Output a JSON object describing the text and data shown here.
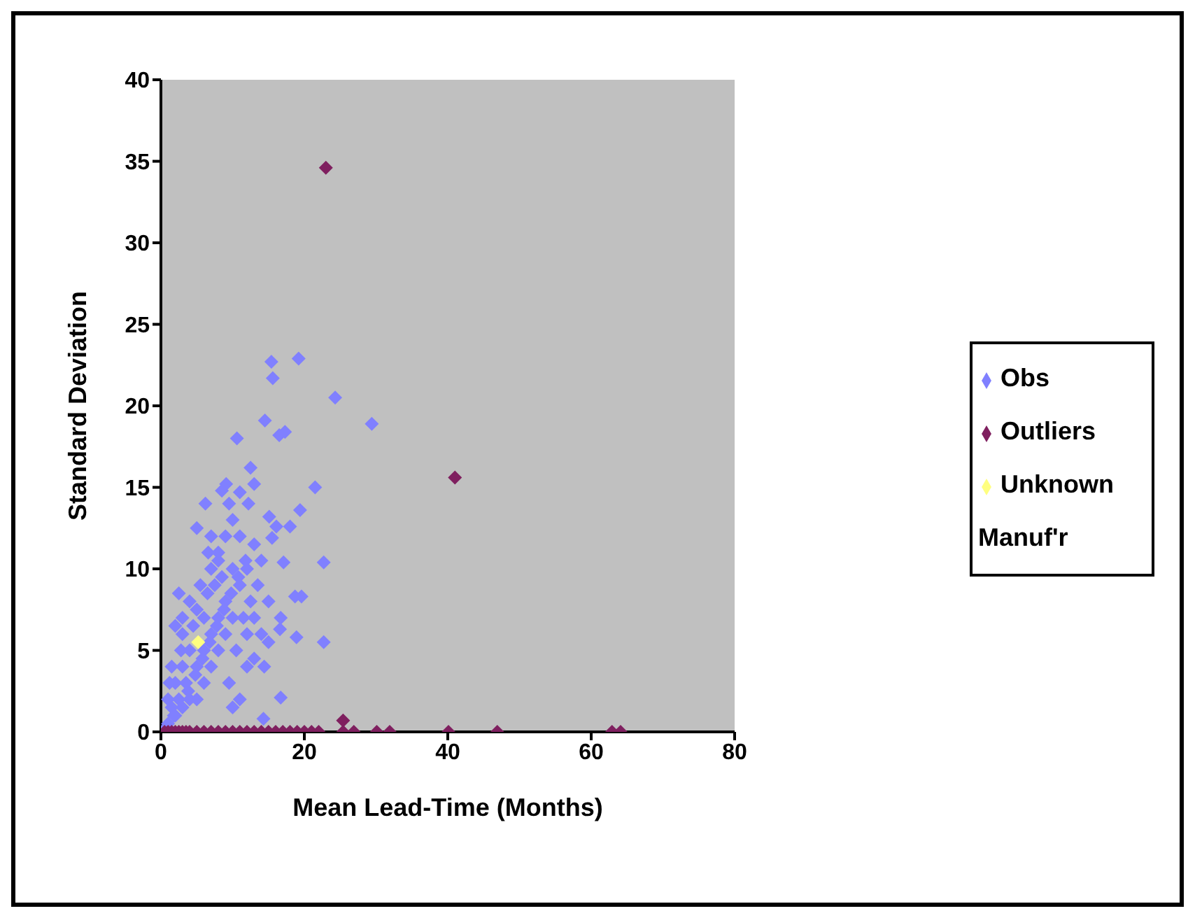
{
  "chart_data": {
    "type": "scatter",
    "xlabel": "Mean Lead-Time (Months)",
    "ylabel": "Standard Deviation",
    "xlim": [
      0,
      80
    ],
    "ylim": [
      0,
      40
    ],
    "xticks": [
      0,
      20,
      40,
      60,
      80
    ],
    "yticks": [
      0,
      5,
      10,
      15,
      20,
      25,
      30,
      35,
      40
    ],
    "grid": false,
    "legend": "right",
    "marker": "diamond",
    "series": [
      {
        "name": "Obs",
        "color": "#8080ff",
        "x": [
          15.4,
          19.2,
          15.6,
          24.3,
          29.4,
          14.5,
          16.5,
          17.3,
          10.6,
          21.5,
          12.5,
          22.7,
          22.7,
          16.7,
          14.4,
          14.3,
          19.4,
          18.0,
          19.6,
          18.7,
          18.9,
          16.6,
          16.7,
          17.1,
          15.1,
          15.5,
          16.1,
          9.1,
          8.5,
          6.2,
          5.0,
          6.6,
          8.0,
          12.2,
          13.0,
          11.0,
          1,
          1.5,
          2,
          2,
          2.5,
          3,
          3,
          3,
          3.5,
          4,
          4,
          4,
          4.5,
          5,
          5,
          5,
          5.5,
          6,
          6,
          6,
          6.5,
          7,
          7,
          7,
          7.5,
          8,
          8,
          8,
          8.5,
          9,
          9,
          9,
          9.5,
          10,
          10,
          10,
          10.5,
          11,
          11,
          11.5,
          12,
          12,
          12.5,
          13,
          13,
          13.5,
          14,
          14,
          15,
          15,
          2.5,
          2,
          1.5,
          1,
          1.2,
          3,
          2.8,
          7,
          9.5,
          10,
          11,
          12,
          13,
          0.8,
          1.8,
          3.8,
          4.8,
          5.8,
          6.8,
          7.8,
          8.8,
          9.8,
          10.8,
          11.8
        ],
        "values": [
          22.7,
          22.9,
          21.7,
          20.5,
          18.9,
          19.1,
          18.2,
          18.4,
          18.0,
          15.0,
          16.2,
          10.4,
          5.5,
          2.1,
          4.0,
          0.8,
          13.6,
          12.6,
          8.3,
          8.3,
          5.8,
          6.3,
          7.0,
          10.4,
          13.2,
          11.9,
          12.6,
          15.2,
          14.8,
          14.0,
          12.5,
          11.0,
          10.5,
          14.0,
          15.2,
          14.7,
          0.5,
          1.5,
          1,
          3,
          2,
          4,
          6,
          1.5,
          3,
          5,
          8,
          2,
          6.5,
          4,
          7.5,
          2,
          9,
          5,
          7,
          3,
          8.5,
          6,
          10,
          4,
          9,
          7,
          11,
          5,
          9.5,
          8,
          12,
          6,
          3,
          10,
          7,
          13,
          5,
          9,
          12,
          7,
          10,
          6,
          8,
          11.5,
          7,
          9,
          10.5,
          6,
          8,
          5.5,
          8.5,
          6.5,
          4,
          2,
          3,
          7,
          5,
          12,
          14,
          1.5,
          2,
          4,
          4.5,
          0.3,
          1,
          2.5,
          3.5,
          4.5,
          5.5,
          6.5,
          7.5,
          8.5,
          9.5,
          10.5
        ]
      },
      {
        "name": "Outliers",
        "color": "#7f1f5f",
        "x": [
          23,
          41,
          0.5,
          1,
          1.5,
          2,
          2.5,
          3,
          3.5,
          4,
          5,
          6,
          7,
          8,
          9,
          10,
          11,
          12,
          13,
          14,
          15,
          16,
          17,
          18,
          19,
          20,
          21,
          22,
          25.4,
          25.4,
          26.9,
          30.1,
          31.9,
          40.1,
          46.9,
          62.9,
          64.1
        ],
        "values": [
          34.6,
          15.6,
          0,
          0,
          0,
          0,
          0,
          0,
          0,
          0,
          0,
          0,
          0,
          0,
          0,
          0,
          0,
          0,
          0,
          0,
          0,
          0,
          0,
          0,
          0,
          0,
          0,
          0,
          0.7,
          0,
          0,
          0,
          0,
          0,
          0,
          0,
          0
        ]
      },
      {
        "name": "Unknown Manuf'r",
        "color": "#ffff80",
        "x": [
          5.2
        ],
        "values": [
          5.5
        ]
      }
    ]
  }
}
